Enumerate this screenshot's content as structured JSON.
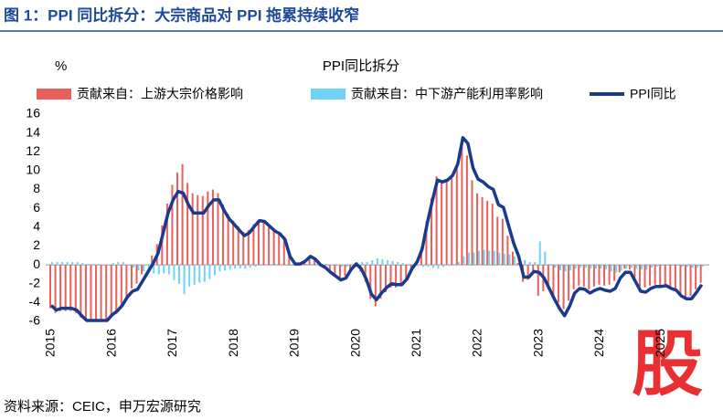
{
  "chart_data": {
    "type": "bar-line",
    "figure_title": "图 1：PPI 同比拆分：大宗商品对 PPI 拖累持续收窄",
    "title": "PPI同比拆分",
    "y_unit": "%",
    "source": "资料来源：CEIC，申万宏源研究",
    "watermark": "股",
    "categories": [
      "2015",
      null,
      null,
      null,
      null,
      null,
      null,
      null,
      null,
      null,
      null,
      null,
      "2016",
      null,
      null,
      null,
      null,
      null,
      null,
      null,
      null,
      null,
      null,
      null,
      "2017",
      null,
      null,
      null,
      null,
      null,
      null,
      null,
      null,
      null,
      null,
      null,
      "2018",
      null,
      null,
      null,
      null,
      null,
      null,
      null,
      null,
      null,
      null,
      null,
      "2019",
      null,
      null,
      null,
      null,
      null,
      null,
      null,
      null,
      null,
      null,
      null,
      "2020",
      null,
      null,
      null,
      null,
      null,
      null,
      null,
      null,
      null,
      null,
      null,
      "2021",
      null,
      null,
      null,
      null,
      null,
      null,
      null,
      null,
      null,
      null,
      null,
      "2022",
      null,
      null,
      null,
      null,
      null,
      null,
      null,
      null,
      null,
      null,
      null,
      "2023",
      null,
      null,
      null,
      null,
      null,
      null,
      null,
      null,
      null,
      null,
      null,
      "2024",
      null,
      null,
      null,
      null,
      null,
      null,
      null,
      null,
      null,
      null,
      null,
      "2025",
      null,
      null,
      null,
      null,
      null,
      null,
      null,
      null
    ],
    "series": [
      {
        "name": "贡献来自：上游大宗价格影响",
        "type": "bar",
        "color": "#e8605a",
        "values": [
          -4.6,
          -5.1,
          -4.9,
          -4.9,
          -4.9,
          -5.1,
          -5.6,
          -6.0,
          -6.0,
          -6.0,
          -5.9,
          -5.9,
          -5.5,
          -5.2,
          -4.6,
          -3.4,
          -2.5,
          -2.0,
          -1.0,
          0.0,
          1.0,
          2.2,
          4.2,
          6.5,
          8.5,
          9.8,
          10.7,
          8.7,
          7.6,
          7.4,
          7.3,
          7.8,
          8.0,
          7.6,
          6.4,
          5.4,
          4.7,
          4.1,
          3.5,
          3.7,
          4.3,
          4.8,
          4.6,
          4.0,
          3.5,
          3.3,
          2.7,
          1.0,
          0.1,
          0.0,
          0.3,
          0.8,
          0.5,
          -0.1,
          -0.4,
          -0.8,
          -1.1,
          -1.4,
          -1.2,
          -0.4,
          -0.2,
          -0.7,
          -1.8,
          -3.6,
          -4.4,
          -3.6,
          -2.9,
          -2.4,
          -2.4,
          -2.3,
          -1.6,
          -0.5,
          0.4,
          1.9,
          4.6,
          7.1,
          9.4,
          9.0,
          9.1,
          9.4,
          10.4,
          12.6,
          11.6,
          9.0,
          7.6,
          7.2,
          6.8,
          6.5,
          5.1,
          4.9,
          3.1,
          1.4,
          0.2,
          -1.8,
          -1.6,
          -1.0,
          -3.3,
          -2.8,
          -2.6,
          -3.3,
          -4.0,
          -4.7,
          -3.8,
          -2.6,
          -2.2,
          -2.3,
          -2.6,
          -2.3,
          -2.1,
          -2.2,
          -2.1,
          -1.7,
          -0.8,
          -0.4,
          -0.5,
          -1.4,
          -2.3,
          -2.4,
          -2.2,
          -2.1,
          -2.2,
          -2.2,
          -2.4,
          -2.6,
          -3.1,
          -3.4,
          -3.3,
          -2.6,
          -1.9
        ]
      },
      {
        "name": "贡献来自：中下游产能利用率影响",
        "type": "bar",
        "color": "#6fd3f5",
        "values": [
          0.3,
          0.3,
          0.3,
          0.3,
          0.3,
          0.3,
          0.2,
          0.1,
          0.1,
          0.1,
          0.0,
          0.0,
          0.2,
          0.3,
          0.3,
          0.0,
          -0.3,
          -0.6,
          -0.7,
          -0.8,
          -0.9,
          -1.0,
          -0.9,
          -1.0,
          -1.6,
          -2.0,
          -3.1,
          -2.3,
          -2.1,
          -1.9,
          -1.8,
          -1.5,
          -1.1,
          -0.7,
          -0.6,
          -0.5,
          -0.4,
          -0.4,
          -0.4,
          -0.3,
          -0.2,
          -0.1,
          0.0,
          0.1,
          0.1,
          0.0,
          0.0,
          -0.1,
          0.0,
          0.1,
          0.1,
          0.1,
          0.1,
          0.1,
          0.1,
          0.0,
          -0.1,
          -0.2,
          -0.2,
          -0.1,
          0.3,
          0.3,
          0.3,
          0.5,
          0.7,
          0.6,
          0.5,
          0.4,
          0.3,
          0.2,
          0.1,
          0.1,
          -0.1,
          -0.2,
          -0.2,
          -0.3,
          -0.4,
          -0.2,
          -0.1,
          0.1,
          0.3,
          0.9,
          1.3,
          1.3,
          1.5,
          1.6,
          1.5,
          1.5,
          1.3,
          1.2,
          1.1,
          0.9,
          0.7,
          0.5,
          0.3,
          0.3,
          2.5,
          1.4,
          0.1,
          -0.3,
          -0.6,
          -0.7,
          -0.6,
          -0.4,
          -0.3,
          -0.3,
          -0.4,
          -0.4,
          -0.4,
          -0.5,
          -0.7,
          -0.8,
          -0.6,
          -0.4,
          -0.3,
          -0.4,
          -0.5,
          -0.5,
          -0.3,
          -0.2,
          -0.1,
          0.0,
          -0.1,
          -0.1,
          -0.2,
          -0.2,
          -0.3,
          -0.3,
          -0.2
        ]
      },
      {
        "name": "PPI同比",
        "type": "line",
        "color": "#1a3a8f",
        "values": [
          -4.3,
          -4.8,
          -4.6,
          -4.6,
          -4.6,
          -4.8,
          -5.4,
          -5.9,
          -5.9,
          -5.9,
          -5.9,
          -5.9,
          -5.3,
          -4.9,
          -4.3,
          -3.4,
          -2.8,
          -2.6,
          -1.7,
          -0.8,
          0.1,
          1.2,
          3.3,
          5.5,
          6.9,
          7.8,
          7.6,
          6.4,
          5.5,
          5.5,
          5.5,
          6.3,
          6.9,
          6.9,
          5.8,
          4.9,
          4.3,
          3.7,
          3.1,
          3.4,
          4.1,
          4.7,
          4.6,
          4.1,
          3.6,
          3.3,
          2.7,
          0.9,
          0.1,
          0.1,
          0.4,
          0.9,
          0.6,
          0.0,
          -0.3,
          -0.8,
          -1.2,
          -1.6,
          -1.4,
          -0.5,
          0.1,
          -0.4,
          -1.5,
          -3.1,
          -3.7,
          -3.0,
          -2.4,
          -2.0,
          -2.1,
          -2.1,
          -1.5,
          -0.4,
          0.3,
          1.7,
          4.4,
          6.8,
          9.0,
          8.8,
          9.0,
          9.5,
          10.7,
          13.5,
          12.9,
          10.3,
          9.1,
          8.8,
          8.3,
          8.0,
          6.4,
          6.1,
          4.2,
          2.3,
          0.9,
          -1.3,
          -1.3,
          -0.7,
          -0.8,
          -1.4,
          -2.5,
          -3.6,
          -4.6,
          -5.4,
          -4.4,
          -3.0,
          -2.5,
          -2.6,
          -3.0,
          -2.7,
          -2.5,
          -2.7,
          -2.8,
          -2.5,
          -1.4,
          -0.8,
          -0.8,
          -1.8,
          -2.8,
          -2.9,
          -2.5,
          -2.3,
          -2.3,
          -2.2,
          -2.5,
          -2.7,
          -3.3,
          -3.6,
          -3.6,
          -2.9,
          -2.1
        ]
      }
    ],
    "ylim": [
      -6,
      16
    ],
    "yticks": [
      -6,
      -4,
      -2,
      0,
      2,
      4,
      6,
      8,
      10,
      12,
      14,
      16
    ]
  }
}
